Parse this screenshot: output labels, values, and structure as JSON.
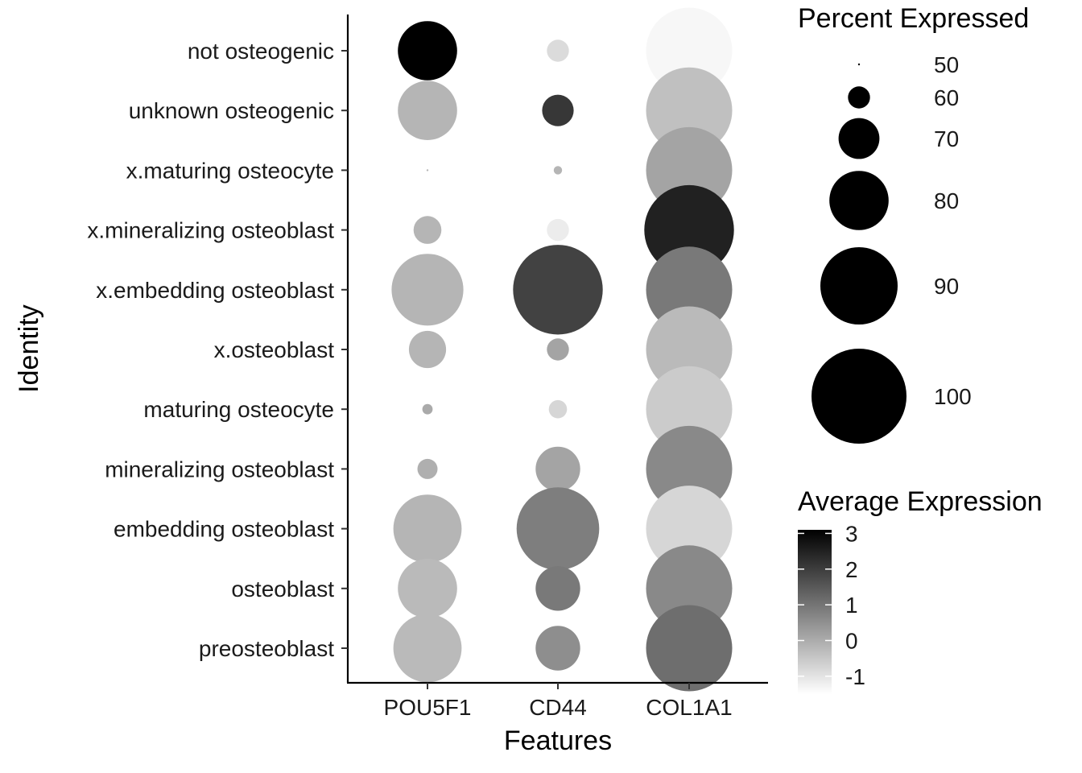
{
  "chart_data": {
    "type": "scatter",
    "subtype": "dot-plot",
    "xlabel": "Features",
    "ylabel": "Identity",
    "features": [
      "POU5F1",
      "CD44",
      "COL1A1"
    ],
    "identities": [
      "not osteogenic",
      "unknown osteogenic",
      "x.maturing osteocyte",
      "x.mineralizing osteoblast",
      "x.embedding osteoblast",
      "x.osteoblast",
      "maturing osteocyte",
      "mineralizing osteoblast",
      "embedding osteoblast",
      "osteoblast",
      "preosteoblast"
    ],
    "points": [
      {
        "identity": "not osteogenic",
        "feature": "POU5F1",
        "pct_expressed": 80,
        "avg_expression": 3.1
      },
      {
        "identity": "not osteogenic",
        "feature": "CD44",
        "pct_expressed": 60,
        "avg_expression": -0.9
      },
      {
        "identity": "not osteogenic",
        "feature": "COL1A1",
        "pct_expressed": 95,
        "avg_expression": -1.4
      },
      {
        "identity": "unknown osteogenic",
        "feature": "POU5F1",
        "pct_expressed": 80,
        "avg_expression": -0.2
      },
      {
        "identity": "unknown osteogenic",
        "feature": "CD44",
        "pct_expressed": 65,
        "avg_expression": 2.1
      },
      {
        "identity": "unknown osteogenic",
        "feature": "COL1A1",
        "pct_expressed": 95,
        "avg_expression": -0.4
      },
      {
        "identity": "x.maturing osteocyte",
        "feature": "POU5F1",
        "pct_expressed": 50,
        "avg_expression": -0.2
      },
      {
        "identity": "x.maturing osteocyte",
        "feature": "CD44",
        "pct_expressed": 53,
        "avg_expression": -0.2
      },
      {
        "identity": "x.maturing osteocyte",
        "feature": "COL1A1",
        "pct_expressed": 95,
        "avg_expression": 0.1
      },
      {
        "identity": "x.mineralizing osteoblast",
        "feature": "POU5F1",
        "pct_expressed": 63,
        "avg_expression": -0.2
      },
      {
        "identity": "x.mineralizing osteoblast",
        "feature": "CD44",
        "pct_expressed": 60,
        "avg_expression": -1.2
      },
      {
        "identity": "x.mineralizing osteoblast",
        "feature": "COL1A1",
        "pct_expressed": 97,
        "avg_expression": 2.5
      },
      {
        "identity": "x.embedding osteoblast",
        "feature": "POU5F1",
        "pct_expressed": 87,
        "avg_expression": -0.2
      },
      {
        "identity": "x.embedding osteoblast",
        "feature": "CD44",
        "pct_expressed": 97,
        "avg_expression": 1.9
      },
      {
        "identity": "x.embedding osteoblast",
        "feature": "COL1A1",
        "pct_expressed": 95,
        "avg_expression": 0.9
      },
      {
        "identity": "x.osteoblast",
        "feature": "POU5F1",
        "pct_expressed": 68,
        "avg_expression": -0.2
      },
      {
        "identity": "x.osteoblast",
        "feature": "CD44",
        "pct_expressed": 60,
        "avg_expression": 0.1
      },
      {
        "identity": "x.osteoblast",
        "feature": "COL1A1",
        "pct_expressed": 95,
        "avg_expression": -0.3
      },
      {
        "identity": "maturing osteocyte",
        "feature": "POU5F1",
        "pct_expressed": 54,
        "avg_expression": 0.0
      },
      {
        "identity": "maturing osteocyte",
        "feature": "CD44",
        "pct_expressed": 58,
        "avg_expression": -0.8
      },
      {
        "identity": "maturing osteocyte",
        "feature": "COL1A1",
        "pct_expressed": 95,
        "avg_expression": -0.6
      },
      {
        "identity": "mineralizing osteoblast",
        "feature": "POU5F1",
        "pct_expressed": 59,
        "avg_expression": -0.1
      },
      {
        "identity": "mineralizing osteoblast",
        "feature": "CD44",
        "pct_expressed": 72,
        "avg_expression": 0.1
      },
      {
        "identity": "mineralizing osteoblast",
        "feature": "COL1A1",
        "pct_expressed": 95,
        "avg_expression": 0.6
      },
      {
        "identity": "embedding osteoblast",
        "feature": "POU5F1",
        "pct_expressed": 85,
        "avg_expression": -0.2
      },
      {
        "identity": "embedding osteoblast",
        "feature": "CD44",
        "pct_expressed": 93,
        "avg_expression": 0.8
      },
      {
        "identity": "embedding osteoblast",
        "feature": "COL1A1",
        "pct_expressed": 95,
        "avg_expression": -0.8
      },
      {
        "identity": "osteoblast",
        "feature": "POU5F1",
        "pct_expressed": 80,
        "avg_expression": -0.3
      },
      {
        "identity": "osteoblast",
        "feature": "CD44",
        "pct_expressed": 72,
        "avg_expression": 0.9
      },
      {
        "identity": "osteoblast",
        "feature": "COL1A1",
        "pct_expressed": 95,
        "avg_expression": 0.6
      },
      {
        "identity": "preosteoblast",
        "feature": "POU5F1",
        "pct_expressed": 85,
        "avg_expression": -0.3
      },
      {
        "identity": "preosteoblast",
        "feature": "CD44",
        "pct_expressed": 72,
        "avg_expression": 0.5
      },
      {
        "identity": "preosteoblast",
        "feature": "COL1A1",
        "pct_expressed": 95,
        "avg_expression": 1.1
      }
    ],
    "size_legend": {
      "title": "Percent Expressed",
      "breaks": [
        50,
        60,
        70,
        80,
        90,
        100
      ]
    },
    "color_legend": {
      "title": "Average Expression",
      "breaks": [
        3,
        2,
        1,
        0,
        -1
      ],
      "limits": [
        -1.5,
        3.1
      ],
      "low_color": "#ffffff",
      "high_color": "#000000"
    },
    "grid": false
  }
}
